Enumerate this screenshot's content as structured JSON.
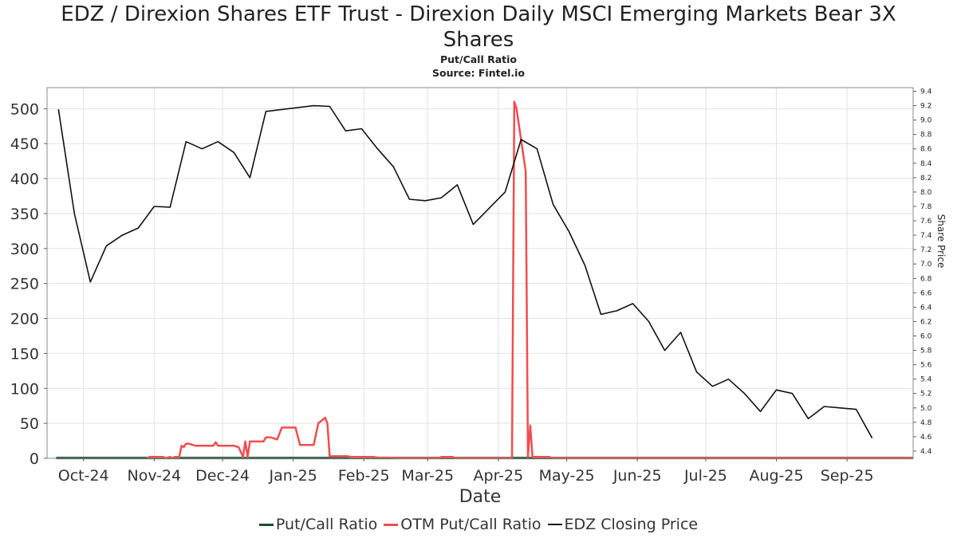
{
  "header": {
    "title_line1": "EDZ / Direxion Shares ETF Trust - Direxion Daily MSCI Emerging Markets Bear 3X",
    "title_line2": "Shares",
    "subtitle": "Put/Call Ratio",
    "source": "Source: Fintel.io"
  },
  "colors": {
    "put_call": "#1f4d2e",
    "otm": "#f04e4e",
    "price": "#111111",
    "grid": "#e2e2e2"
  },
  "chart_data": {
    "type": "line",
    "title": "EDZ / Direxion Shares ETF Trust - Direxion Daily MSCI Emerging Markets Bear 3X Shares",
    "subtitle": "Put/Call Ratio",
    "xlabel": "Date",
    "ylabel": "",
    "y2label": "Share Price",
    "x_range": [
      "2024-09-15",
      "2025-09-30"
    ],
    "ylim": [
      0,
      530
    ],
    "y2lim": [
      4.3,
      9.45
    ],
    "y_ticks": [
      0,
      50,
      100,
      150,
      200,
      250,
      300,
      350,
      400,
      450,
      500
    ],
    "y_tick_labels": [
      "0",
      "50",
      "100",
      "150",
      "200",
      "250",
      "300",
      "350",
      "400",
      "450",
      "500"
    ],
    "y2_ticks": [
      4.4,
      4.6,
      4.8,
      5.0,
      5.2,
      5.4,
      5.6,
      5.8,
      6.0,
      6.2,
      6.4,
      6.6,
      6.8,
      7.0,
      7.2,
      7.4,
      7.6,
      7.8,
      8.0,
      8.2,
      8.4,
      8.6,
      8.8,
      9.0,
      9.2,
      9.4
    ],
    "y2_tick_labels": [
      "4.4",
      "4.6",
      "4.8",
      "5.0",
      "5.2",
      "5.4",
      "5.6",
      "5.8",
      "6.0",
      "6.2",
      "6.4",
      "6.6",
      "6.8",
      "7.0",
      "7.2",
      "7.4",
      "7.6",
      "7.8",
      "8.0",
      "8.2",
      "8.4",
      "8.6",
      "8.8",
      "9.0",
      "9.2",
      "9.4"
    ],
    "x_ticks": [
      "2024-10-01",
      "2024-11-01",
      "2024-12-01",
      "2025-01-01",
      "2025-02-01",
      "2025-03-01",
      "2025-04-01",
      "2025-05-01",
      "2025-06-01",
      "2025-07-01",
      "2025-08-01",
      "2025-09-01"
    ],
    "x_tick_labels": [
      "Oct-24",
      "Nov-24",
      "Dec-24",
      "Jan-25",
      "Feb-25",
      "Mar-25",
      "Apr-25",
      "May-25",
      "Jun-25",
      "Jul-25",
      "Aug-25",
      "Sep-25"
    ],
    "grid": true,
    "legend_position": "bottom-center",
    "series": [
      {
        "name": "Put/Call Ratio",
        "axis": "left",
        "color": "#1f4d2e",
        "points": [
          [
            "2024-09-19",
            0.5
          ],
          [
            "2025-09-30",
            0.5
          ]
        ]
      },
      {
        "name": "OTM Put/Call Ratio",
        "axis": "left",
        "color": "#f04e4e",
        "points": [
          [
            "2024-10-29",
            0
          ],
          [
            "2024-10-30",
            2
          ],
          [
            "2024-11-05",
            2
          ],
          [
            "2024-11-06",
            0
          ],
          [
            "2024-11-08",
            2
          ],
          [
            "2024-11-09",
            0
          ],
          [
            "2024-11-10",
            2
          ],
          [
            "2024-11-12",
            2
          ],
          [
            "2024-11-13",
            18
          ],
          [
            "2024-11-14",
            16
          ],
          [
            "2024-11-15",
            21
          ],
          [
            "2024-11-16",
            21
          ],
          [
            "2024-11-19",
            18
          ],
          [
            "2024-11-26",
            18
          ],
          [
            "2024-11-27",
            18
          ],
          [
            "2024-11-28",
            23
          ],
          [
            "2024-11-29",
            18
          ],
          [
            "2024-12-06",
            18
          ],
          [
            "2024-12-08",
            16
          ],
          [
            "2024-12-10",
            2
          ],
          [
            "2024-12-11",
            24
          ],
          [
            "2024-12-12",
            2
          ],
          [
            "2024-12-13",
            24
          ],
          [
            "2024-12-19",
            24
          ],
          [
            "2024-12-20",
            30
          ],
          [
            "2024-12-22",
            30
          ],
          [
            "2024-12-25",
            27
          ],
          [
            "2024-12-27",
            44
          ],
          [
            "2025-01-02",
            44
          ],
          [
            "2025-01-04",
            19
          ],
          [
            "2025-01-10",
            19
          ],
          [
            "2025-01-12",
            50
          ],
          [
            "2025-01-15",
            58
          ],
          [
            "2025-01-16",
            50
          ],
          [
            "2025-01-17",
            3
          ],
          [
            "2025-01-25",
            3
          ],
          [
            "2025-01-26",
            2
          ],
          [
            "2025-02-05",
            2
          ],
          [
            "2025-02-07",
            1
          ],
          [
            "2025-02-12",
            1
          ],
          [
            "2025-02-15",
            0.5
          ],
          [
            "2025-03-06",
            0.5
          ],
          [
            "2025-03-07",
            2
          ],
          [
            "2025-03-12",
            2
          ],
          [
            "2025-03-13",
            0.5
          ],
          [
            "2025-04-07",
            0.5
          ],
          [
            "2025-04-08",
            510
          ],
          [
            "2025-04-09",
            500
          ],
          [
            "2025-04-13",
            410
          ],
          [
            "2025-04-14",
            2
          ],
          [
            "2025-04-15",
            47
          ],
          [
            "2025-04-16",
            2
          ],
          [
            "2025-04-23",
            2
          ],
          [
            "2025-04-25",
            0.5
          ],
          [
            "2025-09-30",
            0.5
          ]
        ]
      },
      {
        "name": "EDZ Closing Price",
        "axis": "right",
        "color": "#111111",
        "points": [
          [
            "2024-09-20",
            9.15
          ],
          [
            "2024-09-27",
            7.7
          ],
          [
            "2024-10-04",
            6.75
          ],
          [
            "2024-10-11",
            7.25
          ],
          [
            "2024-10-18",
            7.4
          ],
          [
            "2024-10-25",
            7.5
          ],
          [
            "2024-11-01",
            7.8
          ],
          [
            "2024-11-08",
            7.79
          ],
          [
            "2024-11-15",
            8.7
          ],
          [
            "2024-11-22",
            8.6
          ],
          [
            "2024-11-29",
            8.7
          ],
          [
            "2024-12-06",
            8.55
          ],
          [
            "2024-12-13",
            8.2
          ],
          [
            "2024-12-20",
            9.12
          ],
          [
            "2025-01-10",
            9.2
          ],
          [
            "2025-01-17",
            9.19
          ],
          [
            "2025-01-24",
            8.85
          ],
          [
            "2025-01-31",
            8.88
          ],
          [
            "2025-02-07",
            8.6
          ],
          [
            "2025-02-14",
            8.35
          ],
          [
            "2025-02-21",
            7.9
          ],
          [
            "2025-02-28",
            7.88
          ],
          [
            "2025-03-07",
            7.92
          ],
          [
            "2025-03-14",
            8.1
          ],
          [
            "2025-03-21",
            7.55
          ],
          [
            "2025-04-04",
            8.0
          ],
          [
            "2025-04-11",
            8.73
          ],
          [
            "2025-04-18",
            8.6
          ],
          [
            "2025-04-25",
            7.83
          ],
          [
            "2025-05-02",
            7.45
          ],
          [
            "2025-05-09",
            6.98
          ],
          [
            "2025-05-16",
            6.3
          ],
          [
            "2025-05-23",
            6.35
          ],
          [
            "2025-05-30",
            6.45
          ],
          [
            "2025-06-06",
            6.2
          ],
          [
            "2025-06-13",
            5.8
          ],
          [
            "2025-06-20",
            6.05
          ],
          [
            "2025-06-27",
            5.5
          ],
          [
            "2025-07-04",
            5.3
          ],
          [
            "2025-07-11",
            5.4
          ],
          [
            "2025-07-18",
            5.2
          ],
          [
            "2025-07-25",
            4.95
          ],
          [
            "2025-08-01",
            5.25
          ],
          [
            "2025-08-08",
            5.2
          ],
          [
            "2025-08-15",
            4.85
          ],
          [
            "2025-08-22",
            5.02
          ],
          [
            "2025-08-29",
            5.0
          ],
          [
            "2025-09-05",
            4.98
          ],
          [
            "2025-09-12",
            4.58
          ]
        ]
      }
    ]
  }
}
